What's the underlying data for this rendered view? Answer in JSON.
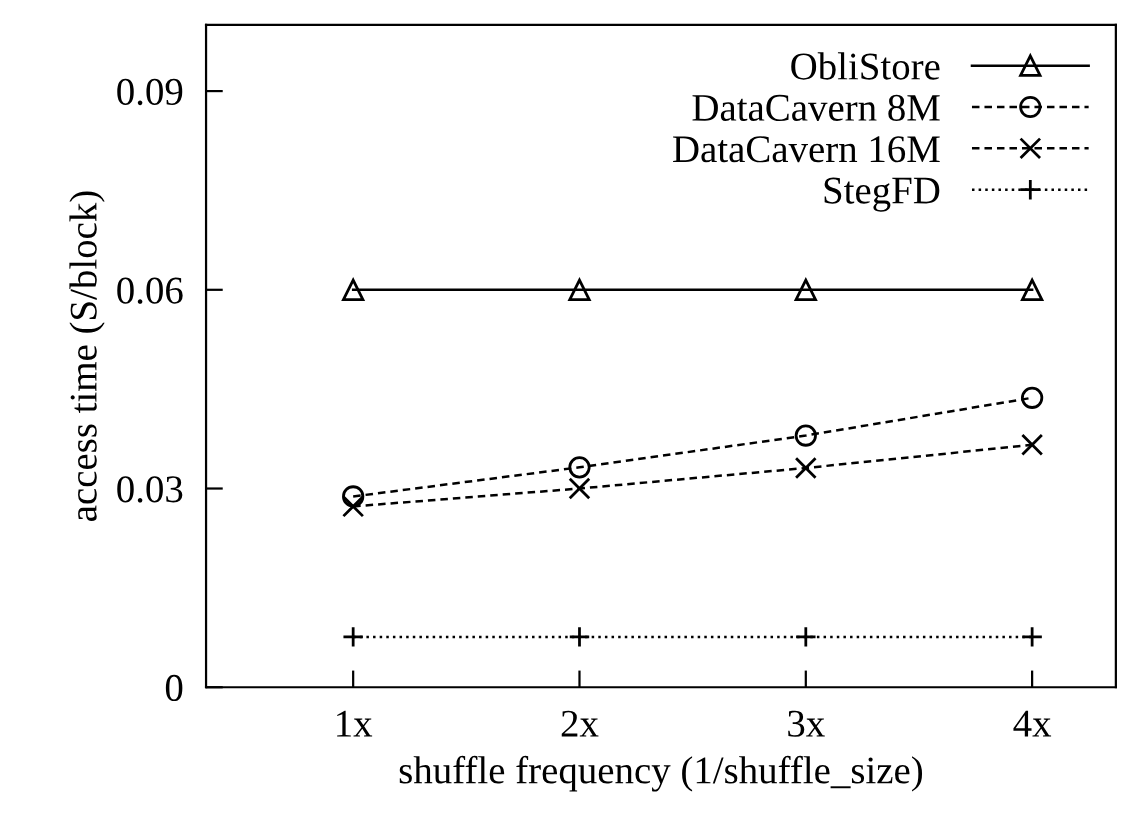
{
  "chart_data": {
    "type": "line",
    "xlabel": "shuffle frequency (1/shuffle_size)",
    "ylabel": "access time (S/block)",
    "x": [
      1,
      2,
      3,
      4
    ],
    "xlim": [
      0.35,
      4.37
    ],
    "xticks": [
      {
        "value": 1,
        "label": "1x"
      },
      {
        "value": 2,
        "label": "2x"
      },
      {
        "value": 3,
        "label": "3x"
      },
      {
        "value": 4,
        "label": "4x"
      }
    ],
    "ylim": [
      0,
      0.1
    ],
    "yticks": [
      {
        "value": 0,
        "label": "0"
      },
      {
        "value": 0.03,
        "label": "0.03"
      },
      {
        "value": 0.06,
        "label": "0.06"
      },
      {
        "value": 0.09,
        "label": "0.09"
      }
    ],
    "grid": false,
    "legend": "top right",
    "series": [
      {
        "name": "ObliStore",
        "color": "#000000",
        "values": [
          0.06,
          0.06,
          0.06,
          0.06
        ],
        "marker": "triangle",
        "line_style": "solid"
      },
      {
        "name": "DataCavern 8M",
        "color": "#000000",
        "values": [
          0.0288,
          0.0332,
          0.038,
          0.0437
        ],
        "marker": "circle",
        "line_style": "dashed"
      },
      {
        "name": "DataCavern 16M",
        "color": "#000000",
        "values": [
          0.0273,
          0.03,
          0.0331,
          0.0366
        ],
        "marker": "cross",
        "line_style": "dashed"
      },
      {
        "name": "StegFD",
        "color": "#000000",
        "values": [
          0.0076,
          0.0076,
          0.0076,
          0.0076
        ],
        "marker": "plus",
        "line_style": "dotted"
      }
    ]
  }
}
